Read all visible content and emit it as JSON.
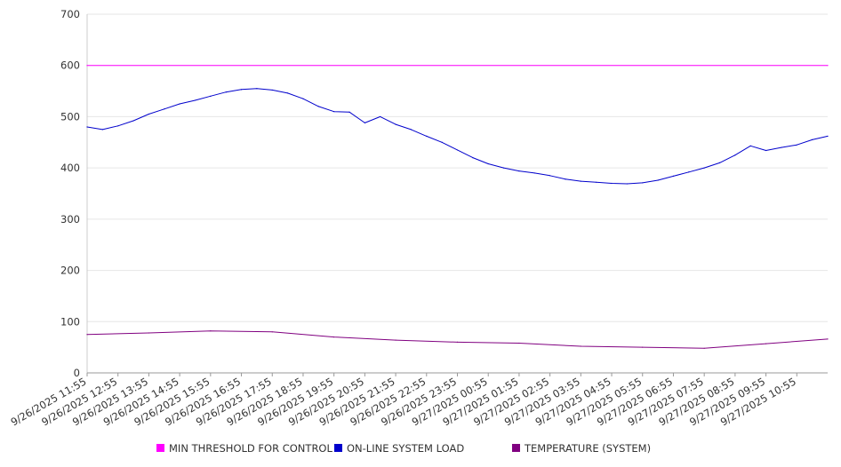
{
  "chart_data": {
    "type": "line",
    "ylim": [
      0,
      700
    ],
    "yticks": [
      0,
      100,
      200,
      300,
      400,
      500,
      600,
      700
    ],
    "x_range": [
      "9/26/2025 11:55",
      "9/27/2025 11:55"
    ],
    "x_tick_labels": [
      "9/26/2025 11:55",
      "9/26/2025 12:55",
      "9/26/2025 13:55",
      "9/26/2025 14:55",
      "9/26/2025 15:55",
      "9/26/2025 16:55",
      "9/26/2025 17:55",
      "9/26/2025 18:55",
      "9/26/2025 19:55",
      "9/26/2025 20:55",
      "9/26/2025 21:55",
      "9/26/2025 22:55",
      "9/26/2025 23:55",
      "9/27/2025 00:55",
      "9/27/2025 01:55",
      "9/27/2025 02:55",
      "9/27/2025 03:55",
      "9/27/2025 04:55",
      "9/27/2025 05:55",
      "9/27/2025 06:55",
      "9/27/2025 07:55",
      "9/27/2025 08:55",
      "9/27/2025 09:55",
      "9/27/2025 10:55"
    ],
    "grid": true,
    "legend_position": "bottom",
    "series": [
      {
        "name": "MIN THRESHOLD FOR CONTROL",
        "color": "#ff00ff",
        "x": [
          "9/26/2025 11:55",
          "9/27/2025 11:55"
        ],
        "values": [
          600,
          600
        ]
      },
      {
        "name": "ON-LINE SYSTEM LOAD",
        "color": "#0000cc",
        "x": [
          "9/26/2025 11:55",
          "9/26/2025 12:25",
          "9/26/2025 12:55",
          "9/26/2025 13:25",
          "9/26/2025 13:55",
          "9/26/2025 14:25",
          "9/26/2025 14:55",
          "9/26/2025 15:25",
          "9/26/2025 15:55",
          "9/26/2025 16:25",
          "9/26/2025 16:55",
          "9/26/2025 17:25",
          "9/26/2025 17:55",
          "9/26/2025 18:25",
          "9/26/2025 18:55",
          "9/26/2025 19:25",
          "9/26/2025 19:55",
          "9/26/2025 20:25",
          "9/26/2025 20:55",
          "9/26/2025 21:25",
          "9/26/2025 21:55",
          "9/26/2025 22:25",
          "9/26/2025 22:55",
          "9/26/2025 23:25",
          "9/26/2025 23:55",
          "9/27/2025 00:25",
          "9/27/2025 00:55",
          "9/27/2025 01:25",
          "9/27/2025 01:55",
          "9/27/2025 02:25",
          "9/27/2025 02:55",
          "9/27/2025 03:25",
          "9/27/2025 03:55",
          "9/27/2025 04:25",
          "9/27/2025 04:55",
          "9/27/2025 05:25",
          "9/27/2025 05:55",
          "9/27/2025 06:25",
          "9/27/2025 06:55",
          "9/27/2025 07:25",
          "9/27/2025 07:55",
          "9/27/2025 08:25",
          "9/27/2025 08:55",
          "9/27/2025 09:25",
          "9/27/2025 09:55",
          "9/27/2025 10:25",
          "9/27/2025 10:55",
          "9/27/2025 11:25",
          "9/27/2025 11:55"
        ],
        "values": [
          480,
          475,
          482,
          492,
          505,
          515,
          525,
          532,
          540,
          548,
          553,
          555,
          552,
          546,
          535,
          520,
          510,
          509,
          488,
          500,
          485,
          475,
          462,
          450,
          435,
          420,
          408,
          400,
          394,
          390,
          385,
          378,
          374,
          372,
          370,
          369,
          371,
          376,
          384,
          392,
          400,
          410,
          425,
          443,
          434,
          440,
          445,
          455,
          462
        ]
      },
      {
        "name": "TEMPERATURE (SYSTEM)",
        "color": "#800080",
        "x": [
          "9/26/2025 11:55",
          "9/26/2025 13:55",
          "9/26/2025 15:55",
          "9/26/2025 17:55",
          "9/26/2025 19:55",
          "9/26/2025 21:55",
          "9/26/2025 23:55",
          "9/27/2025 01:55",
          "9/27/2025 03:55",
          "9/27/2025 05:55",
          "9/27/2025 07:55",
          "9/27/2025 09:55",
          "9/27/2025 11:55"
        ],
        "values": [
          75,
          78,
          82,
          80,
          70,
          64,
          60,
          58,
          52,
          50,
          48,
          57,
          66
        ]
      }
    ]
  }
}
